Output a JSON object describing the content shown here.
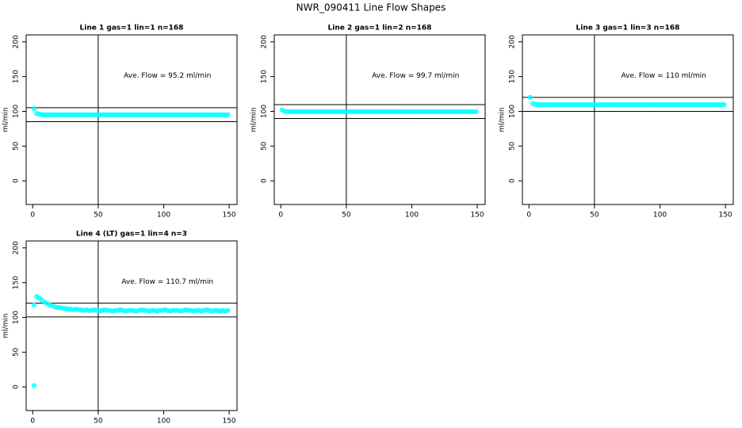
{
  "title": "NWR_090411  Line Flow Shapes",
  "chart_data": [
    {
      "type": "scatter",
      "title": "Line 1 gas=1 lin=1 n=168",
      "ylabel": "ml/min",
      "annotation": "Ave. Flow =  95.2  ml/min",
      "color": "#00ffff",
      "xlim": [
        -5,
        156
      ],
      "ylim": [
        -34,
        210
      ],
      "xticks": [
        0,
        50,
        100,
        150
      ],
      "yticks": [
        0,
        50,
        100,
        150,
        200
      ],
      "hlines": [
        85.2,
        105.2
      ],
      "vline": 50,
      "x": [
        1,
        3,
        5,
        7,
        9,
        11,
        13,
        15,
        17,
        19,
        21,
        23,
        25,
        27,
        29,
        31,
        33,
        35,
        37,
        39,
        41,
        43,
        45,
        47,
        49,
        51,
        53,
        55,
        57,
        59,
        61,
        63,
        65,
        67,
        69,
        71,
        73,
        75,
        77,
        79,
        81,
        83,
        85,
        87,
        89,
        91,
        93,
        95,
        97,
        99,
        101,
        103,
        105,
        107,
        109,
        111,
        113,
        115,
        117,
        119,
        121,
        123,
        125,
        127,
        129,
        131,
        133,
        135,
        137,
        139,
        141,
        143,
        145,
        147,
        149
      ],
      "values": [
        104,
        97,
        96,
        95.5,
        95,
        95,
        95,
        95,
        95,
        95,
        95,
        95,
        95,
        95,
        95,
        95,
        95,
        95,
        95,
        95,
        95,
        95,
        95,
        95,
        95,
        95,
        95,
        95,
        95,
        95,
        95,
        95,
        95,
        95,
        95,
        95,
        95,
        95,
        95,
        95,
        95,
        95,
        95,
        95,
        95,
        95,
        95,
        95,
        95,
        95,
        95,
        95,
        95,
        95,
        95,
        95,
        95,
        95,
        95,
        95,
        95,
        95,
        95,
        95,
        95,
        95,
        95,
        95,
        95,
        95,
        95,
        95,
        95,
        95,
        95
      ]
    },
    {
      "type": "scatter",
      "title": "Line 2 gas=1 lin=2 n=168",
      "ylabel": "ml/min",
      "annotation": "Ave. Flow =  99.7  ml/min",
      "color": "#00ffff",
      "xlim": [
        -5,
        156
      ],
      "ylim": [
        -34,
        210
      ],
      "xticks": [
        0,
        50,
        100,
        150
      ],
      "yticks": [
        0,
        50,
        100,
        150,
        200
      ],
      "hlines": [
        89.7,
        109.7
      ],
      "vline": 50,
      "x": [
        1,
        3,
        5,
        7,
        9,
        11,
        13,
        15,
        17,
        19,
        21,
        23,
        25,
        27,
        29,
        31,
        33,
        35,
        37,
        39,
        41,
        43,
        45,
        47,
        49,
        51,
        53,
        55,
        57,
        59,
        61,
        63,
        65,
        67,
        69,
        71,
        73,
        75,
        77,
        79,
        81,
        83,
        85,
        87,
        89,
        91,
        93,
        95,
        97,
        99,
        101,
        103,
        105,
        107,
        109,
        111,
        113,
        115,
        117,
        119,
        121,
        123,
        125,
        127,
        129,
        131,
        133,
        135,
        137,
        139,
        141,
        143,
        145,
        147,
        149
      ],
      "values": [
        102,
        100,
        99.5,
        99.5,
        99.5,
        99.5,
        99.5,
        99.5,
        99.5,
        99.5,
        99.5,
        99.5,
        99.5,
        99.5,
        99.5,
        99.5,
        99.5,
        99.5,
        99.5,
        99.5,
        99.5,
        99.5,
        99.5,
        99.5,
        99.5,
        99.5,
        99.5,
        99.5,
        99.5,
        99.5,
        99.5,
        99.5,
        99.5,
        99.5,
        99.5,
        99.5,
        99.5,
        99.5,
        99.5,
        99.5,
        99.5,
        99.5,
        99.5,
        99.5,
        99.5,
        99.5,
        99.5,
        99.5,
        99.5,
        99.5,
        99.5,
        99.5,
        99.5,
        99.5,
        99.5,
        99.5,
        99.5,
        99.5,
        99.5,
        99.5,
        99.5,
        99.5,
        99.5,
        99.5,
        99.5,
        99.5,
        99.5,
        99.5,
        99.5,
        99.5,
        99.5,
        99.5,
        99.5,
        99.5,
        99.5
      ]
    },
    {
      "type": "scatter",
      "title": "Line 3 gas=1 lin=3 n=168",
      "ylabel": "ml/min",
      "annotation": "Ave. Flow =  110  ml/min",
      "color": "#00ffff",
      "xlim": [
        -5,
        156
      ],
      "ylim": [
        -34,
        210
      ],
      "xticks": [
        0,
        50,
        100,
        150
      ],
      "yticks": [
        0,
        50,
        100,
        150,
        200
      ],
      "hlines": [
        100,
        120
      ],
      "vline": 50,
      "x": [
        1,
        3,
        5,
        7,
        9,
        11,
        13,
        15,
        17,
        19,
        21,
        23,
        25,
        27,
        29,
        31,
        33,
        35,
        37,
        39,
        41,
        43,
        45,
        47,
        49,
        51,
        53,
        55,
        57,
        59,
        61,
        63,
        65,
        67,
        69,
        71,
        73,
        75,
        77,
        79,
        81,
        83,
        85,
        87,
        89,
        91,
        93,
        95,
        97,
        99,
        101,
        103,
        105,
        107,
        109,
        111,
        113,
        115,
        117,
        119,
        121,
        123,
        125,
        127,
        129,
        131,
        133,
        135,
        137,
        139,
        141,
        143,
        145,
        147,
        149
      ],
      "values": [
        120,
        111,
        110,
        109.5,
        109.5,
        109.5,
        109.5,
        109.5,
        109.5,
        109.5,
        109.5,
        109.5,
        109.5,
        109.5,
        109.5,
        109.5,
        109.5,
        109.5,
        109.5,
        109.5,
        109.5,
        109.5,
        109.5,
        109.5,
        109.5,
        109.5,
        109.5,
        109.5,
        109.5,
        109.5,
        109.5,
        109.5,
        109.5,
        109.5,
        109.5,
        109.5,
        109.5,
        109.5,
        109.5,
        109.5,
        109.5,
        109.5,
        109.5,
        109.5,
        109.5,
        109.5,
        109.5,
        109.5,
        109.5,
        109.5,
        109.5,
        109.5,
        109.5,
        109.5,
        109.5,
        109.5,
        109.5,
        109.5,
        109.5,
        109.5,
        109.5,
        109.5,
        109.5,
        109.5,
        109.5,
        109.5,
        109.5,
        109.5,
        109.5,
        109.5,
        109.5,
        109.5,
        109.5,
        109.5,
        109.5
      ]
    },
    {
      "type": "scatter",
      "title": "Line 4 (LT) gas=1 lin=4 n=3",
      "ylabel": "ml/min",
      "annotation": "Ave. Flow =  110.7  ml/min",
      "color": "#00ffff",
      "xlim": [
        -5,
        156
      ],
      "ylim": [
        -34,
        210
      ],
      "xticks": [
        0,
        50,
        100,
        150
      ],
      "yticks": [
        0,
        50,
        100,
        150,
        200
      ],
      "hlines": [
        100.7,
        120.7
      ],
      "vline": 50,
      "x": [
        1,
        1,
        3,
        5,
        7,
        9,
        11,
        13,
        15,
        17,
        19,
        21,
        23,
        25,
        27,
        29,
        31,
        33,
        35,
        37,
        39,
        41,
        43,
        45,
        47,
        49,
        51,
        53,
        55,
        57,
        59,
        61,
        63,
        65,
        67,
        69,
        71,
        73,
        75,
        77,
        79,
        81,
        83,
        85,
        87,
        89,
        91,
        93,
        95,
        97,
        99,
        101,
        103,
        105,
        107,
        109,
        111,
        113,
        115,
        117,
        119,
        121,
        123,
        125,
        127,
        129,
        131,
        133,
        135,
        137,
        139,
        141,
        143,
        145,
        147,
        149
      ],
      "values": [
        2,
        118,
        130,
        128,
        125,
        122,
        120,
        118,
        117,
        115,
        114,
        114,
        113,
        113,
        112,
        112,
        111,
        112,
        111,
        111,
        110,
        111,
        110,
        110,
        111,
        110,
        109,
        110,
        111,
        110,
        110,
        109,
        110,
        110,
        111,
        110,
        109,
        110,
        110,
        110,
        109,
        110,
        111,
        110,
        110,
        109,
        110,
        110,
        109,
        110,
        110,
        111,
        110,
        109,
        110,
        110,
        110,
        109,
        110,
        111,
        110,
        110,
        109,
        110,
        110,
        109,
        110,
        111,
        110,
        109,
        110,
        110,
        109,
        110,
        109,
        110
      ]
    }
  ]
}
